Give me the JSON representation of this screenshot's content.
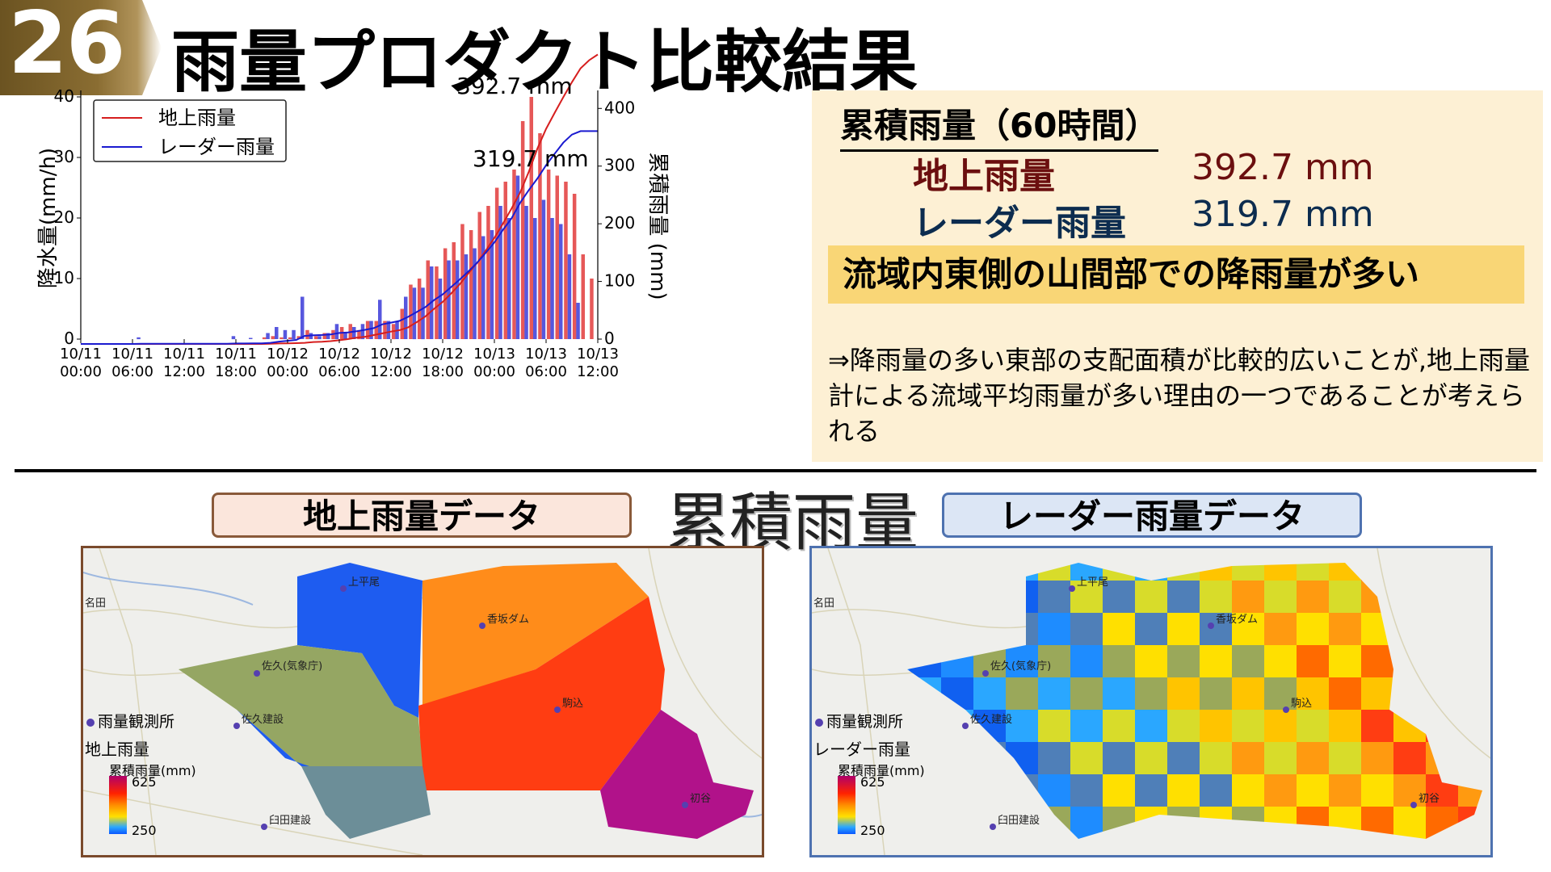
{
  "header": {
    "slide_number": "26",
    "title": "雨量プロダクト比較結果"
  },
  "chart_data": {
    "type": "bar",
    "x_ticks": [
      "10/11\n00:00",
      "10/11\n06:00",
      "10/11\n12:00",
      "10/11\n18:00",
      "10/12\n00:00",
      "10/12\n06:00",
      "10/12\n12:00",
      "10/12\n18:00",
      "10/13\n00:00",
      "10/13\n06:00",
      "10/13\n12:00"
    ],
    "ylabel_left": "降水量(mm/h)",
    "ylabel_right": "累積雨量 (mm)",
    "ylim_left": [
      0,
      40
    ],
    "ylim_right": [
      0,
      420
    ],
    "y_ticks_left": [
      0,
      10,
      20,
      30,
      40
    ],
    "y_ticks_right": [
      0,
      100,
      200,
      300,
      400
    ],
    "legend_position": "top-left",
    "hours_start": 0,
    "series": [
      {
        "name": "地上雨量",
        "color": "#e23b3b",
        "values": [
          0,
          0,
          0,
          0,
          0,
          0,
          0,
          0,
          0,
          0,
          0,
          0,
          0,
          0,
          0,
          0,
          0,
          0,
          0,
          0,
          0,
          0.3,
          0.5,
          0.3,
          0.3,
          0.5,
          1.5,
          0.5,
          1,
          1.5,
          2,
          2.5,
          1.5,
          3,
          3,
          3,
          2.5,
          5,
          9,
          10,
          13,
          12,
          15,
          16,
          19,
          18,
          21,
          22,
          25,
          26,
          28,
          36,
          40,
          34,
          28,
          27,
          26,
          24,
          14,
          10,
          0,
          0,
          0,
          0,
          0,
          0,
          0,
          0,
          0,
          0,
          0,
          0,
          0,
          0,
          0,
          0,
          0,
          0,
          0,
          0,
          0,
          0,
          0,
          0,
          0,
          0,
          0,
          0,
          0,
          0,
          0,
          0,
          0,
          0,
          0,
          0,
          0,
          0,
          0,
          0,
          0,
          0,
          0,
          0,
          0,
          0,
          0,
          0,
          0,
          0,
          0,
          0,
          0,
          0,
          0,
          0,
          0,
          0,
          0,
          0,
          0,
          0,
          0,
          0,
          0,
          0,
          0,
          0,
          0,
          0,
          0,
          0,
          0,
          0,
          0,
          0,
          0,
          0,
          0,
          0,
          0,
          0,
          0,
          0,
          0,
          0,
          0,
          0
        ]
      },
      {
        "name": "レーダー雨量",
        "color": "#3a3ad8",
        "values": [
          0,
          0,
          0,
          0,
          0,
          0,
          0.3,
          0,
          0,
          0,
          0,
          0,
          0,
          0,
          0,
          0,
          0,
          0.5,
          0,
          0.2,
          0,
          1,
          2,
          1.5,
          1.5,
          7,
          1,
          0.5,
          1,
          2.5,
          1,
          2,
          2.5,
          3,
          6.5,
          3,
          3,
          7,
          8.5,
          8.5,
          12,
          10,
          13,
          13,
          14,
          15,
          17,
          18,
          22,
          20,
          27,
          22,
          20,
          23,
          20,
          19,
          14,
          6,
          0,
          0,
          0,
          0,
          0,
          0,
          0,
          0,
          0,
          0,
          0,
          0,
          0,
          0,
          0,
          0,
          0,
          0,
          0,
          0,
          0,
          0,
          0,
          0,
          0,
          0,
          0,
          0,
          0,
          0,
          0,
          0,
          0,
          0,
          0,
          0,
          0,
          0,
          0,
          0,
          0,
          0,
          0,
          0,
          0,
          0,
          0,
          0,
          0,
          0,
          0,
          0,
          0,
          0,
          0,
          0,
          0,
          0,
          0,
          0,
          0,
          0,
          0,
          0,
          0,
          0,
          0,
          0,
          0,
          0,
          0,
          0,
          0,
          0,
          0,
          0,
          0,
          0,
          0,
          0,
          0,
          0,
          0,
          0,
          0,
          0
        ]
      }
    ],
    "annotations": [
      {
        "text": "392.7 mm"
      },
      {
        "text": "319.7 mm"
      }
    ]
  },
  "summary": {
    "heading": "累積雨量（60時間）",
    "ground_label": "地上雨量",
    "ground_value": "392.7 mm",
    "radar_label": "レーダー雨量",
    "radar_value": "319.7 mm",
    "highlight": "流域内東側の山間部での降雨量が多い",
    "note": "⇒降雨量の多い東部の支配面積が比較的広いことが,地上雨量計による流域平均雨量が多い理由の一つであることが考えられる"
  },
  "maps_section": {
    "title": "累積雨量",
    "ground_label": "地上雨量データ",
    "radar_label": "レーダー雨量データ",
    "legend": {
      "station": "雨量観測所",
      "ground_type": "地上雨量",
      "radar_type": "レーダー雨量",
      "unit": "累積雨量(mm)",
      "max": "625",
      "min": "250"
    },
    "stations": [
      "上平尾",
      "香坂ダム",
      "佐久(気象庁)",
      "駒込",
      "佐久建設",
      "初谷",
      "臼田建設"
    ],
    "place": "名田"
  }
}
